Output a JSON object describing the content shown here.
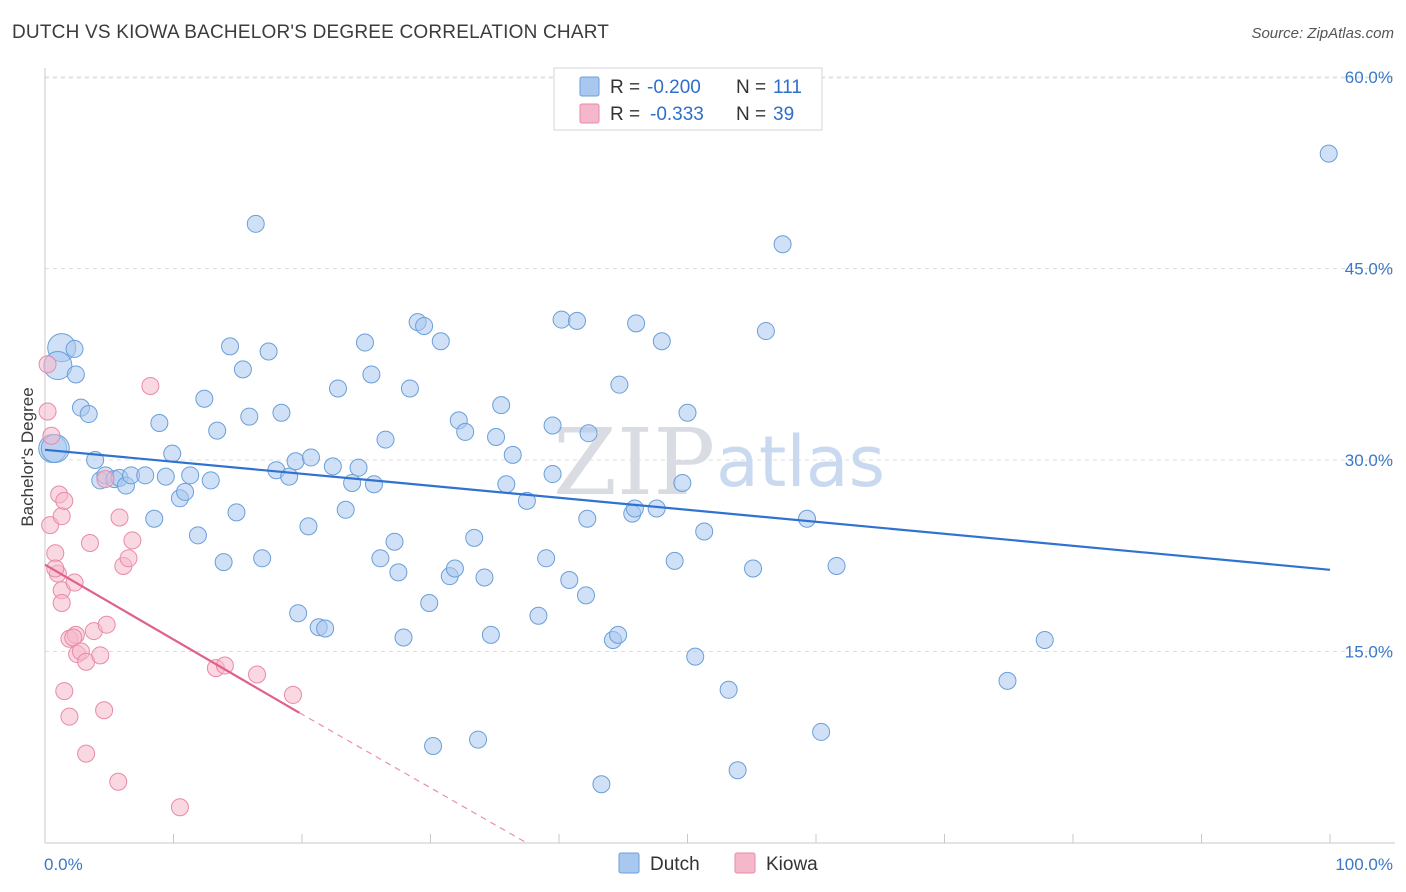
{
  "title": "DUTCH VS KIOWA BACHELOR'S DEGREE CORRELATION CHART",
  "source": "Source: ZipAtlas.com",
  "watermark": {
    "zip": "ZIP",
    "atlas": "atlas"
  },
  "chart_data": {
    "type": "scatter",
    "ylabel": "Bachelor's Degree",
    "xlim": [
      0,
      100
    ],
    "ylim": [
      0,
      62
    ],
    "x_tick_labels": [
      {
        "value": 0,
        "label": "0.0%"
      },
      {
        "value": 100,
        "label": "100.0%"
      }
    ],
    "y_tick_labels": [
      {
        "value": 15,
        "label": "15.0%"
      },
      {
        "value": 30,
        "label": "30.0%"
      },
      {
        "value": 45,
        "label": "45.0%"
      },
      {
        "value": 60,
        "label": "60.0%"
      }
    ],
    "legend_stats": [
      {
        "r_label": "R =",
        "r_value": "-0.200",
        "n_label": "N =",
        "n_value": "111",
        "color": "#a9c8f0"
      },
      {
        "r_label": "R =",
        "r_value": "-0.333",
        "n_label": "N =",
        "n_value": "39",
        "color": "#f5b8cb"
      }
    ],
    "series": [
      {
        "name": "Dutch",
        "color": "#a9c8f0",
        "stroke": "#6a9fd8",
        "trend": {
          "x1": 0,
          "y1": 30.8,
          "x2": 100,
          "y2": 21.4,
          "color": "#2f72d0"
        },
        "points": [
          [
            1.3,
            38.8
          ],
          [
            1.0,
            37.4
          ],
          [
            0.6,
            30.9
          ],
          [
            2.3,
            38.7
          ],
          [
            2.4,
            36.7
          ],
          [
            2.8,
            34.1
          ],
          [
            3.4,
            33.6
          ],
          [
            3.9,
            30.0
          ],
          [
            4.3,
            28.4
          ],
          [
            4.7,
            28.8
          ],
          [
            5.4,
            28.5
          ],
          [
            5.8,
            28.6
          ],
          [
            6.3,
            28.0
          ],
          [
            6.7,
            28.8
          ],
          [
            7.8,
            28.8
          ],
          [
            8.5,
            25.4
          ],
          [
            8.9,
            32.9
          ],
          [
            9.4,
            28.7
          ],
          [
            9.9,
            30.5
          ],
          [
            10.5,
            27.0
          ],
          [
            10.9,
            27.5
          ],
          [
            11.3,
            28.8
          ],
          [
            11.9,
            24.1
          ],
          [
            12.4,
            34.8
          ],
          [
            12.9,
            28.4
          ],
          [
            13.4,
            32.3
          ],
          [
            13.9,
            22.0
          ],
          [
            14.4,
            38.9
          ],
          [
            14.9,
            25.9
          ],
          [
            15.4,
            37.1
          ],
          [
            15.9,
            33.4
          ],
          [
            16.4,
            48.5
          ],
          [
            16.9,
            22.3
          ],
          [
            17.4,
            38.5
          ],
          [
            18.0,
            29.2
          ],
          [
            18.4,
            33.7
          ],
          [
            19.0,
            28.7
          ],
          [
            19.5,
            29.9
          ],
          [
            19.7,
            18.0
          ],
          [
            20.5,
            24.8
          ],
          [
            20.7,
            30.2
          ],
          [
            21.3,
            16.9
          ],
          [
            21.8,
            16.8
          ],
          [
            22.4,
            29.5
          ],
          [
            22.8,
            35.6
          ],
          [
            23.4,
            26.1
          ],
          [
            23.9,
            28.2
          ],
          [
            24.4,
            29.4
          ],
          [
            24.9,
            39.2
          ],
          [
            25.4,
            36.7
          ],
          [
            25.6,
            28.1
          ],
          [
            26.1,
            22.3
          ],
          [
            26.5,
            31.6
          ],
          [
            27.2,
            23.6
          ],
          [
            27.5,
            21.2
          ],
          [
            27.9,
            16.1
          ],
          [
            28.4,
            35.6
          ],
          [
            29.0,
            40.8
          ],
          [
            29.5,
            40.5
          ],
          [
            29.9,
            18.8
          ],
          [
            30.2,
            7.6
          ],
          [
            30.8,
            39.3
          ],
          [
            31.5,
            20.9
          ],
          [
            31.9,
            21.5
          ],
          [
            32.2,
            33.1
          ],
          [
            32.7,
            32.2
          ],
          [
            33.4,
            23.9
          ],
          [
            33.7,
            8.1
          ],
          [
            34.2,
            20.8
          ],
          [
            34.7,
            16.3
          ],
          [
            35.1,
            31.8
          ],
          [
            35.5,
            34.3
          ],
          [
            35.9,
            28.1
          ],
          [
            36.4,
            30.4
          ],
          [
            37.5,
            26.8
          ],
          [
            38.4,
            17.8
          ],
          [
            39.0,
            22.3
          ],
          [
            39.5,
            28.9
          ],
          [
            39.5,
            32.7
          ],
          [
            40.2,
            41.0
          ],
          [
            40.8,
            20.6
          ],
          [
            41.4,
            40.9
          ],
          [
            42.1,
            19.4
          ],
          [
            42.3,
            32.1
          ],
          [
            42.2,
            25.4
          ],
          [
            43.3,
            4.6
          ],
          [
            44.2,
            15.9
          ],
          [
            44.6,
            16.3
          ],
          [
            44.7,
            35.9
          ],
          [
            45.7,
            25.8
          ],
          [
            45.9,
            26.2
          ],
          [
            46.0,
            40.7
          ],
          [
            47.6,
            26.2
          ],
          [
            48.0,
            39.3
          ],
          [
            49.0,
            22.1
          ],
          [
            49.6,
            28.2
          ],
          [
            50.0,
            33.7
          ],
          [
            50.6,
            14.6
          ],
          [
            51.3,
            24.4
          ],
          [
            53.2,
            12.0
          ],
          [
            53.9,
            5.7
          ],
          [
            55.1,
            21.5
          ],
          [
            56.1,
            40.1
          ],
          [
            57.4,
            46.9
          ],
          [
            59.3,
            25.4
          ],
          [
            60.4,
            8.7
          ],
          [
            61.6,
            21.7
          ],
          [
            74.9,
            12.7
          ],
          [
            77.8,
            15.9
          ],
          [
            99.9,
            54.0
          ],
          [
            0.8,
            30.9
          ]
        ]
      },
      {
        "name": "Kiowa",
        "color": "#f5b8cb",
        "stroke": "#e88aa8",
        "trend": {
          "x1": 0,
          "y1": 21.8,
          "x2": 19.8,
          "y2": 10.2,
          "dash_x2": 37.5,
          "dash_y2": 0,
          "color": "#e0608c"
        },
        "points": [
          [
            0.2,
            37.5
          ],
          [
            0.2,
            33.8
          ],
          [
            0.5,
            31.9
          ],
          [
            0.4,
            24.9
          ],
          [
            0.8,
            22.7
          ],
          [
            1.0,
            21.1
          ],
          [
            0.8,
            21.5
          ],
          [
            1.1,
            27.3
          ],
          [
            1.3,
            25.6
          ],
          [
            1.5,
            26.8
          ],
          [
            1.3,
            19.8
          ],
          [
            1.3,
            18.8
          ],
          [
            1.9,
            16.0
          ],
          [
            2.3,
            20.4
          ],
          [
            2.4,
            16.3
          ],
          [
            2.5,
            14.8
          ],
          [
            2.2,
            16.1
          ],
          [
            2.8,
            15.0
          ],
          [
            3.2,
            14.2
          ],
          [
            3.8,
            16.6
          ],
          [
            3.5,
            23.5
          ],
          [
            4.3,
            14.7
          ],
          [
            4.8,
            17.1
          ],
          [
            4.7,
            28.5
          ],
          [
            5.8,
            25.5
          ],
          [
            6.1,
            21.7
          ],
          [
            6.5,
            22.3
          ],
          [
            6.8,
            23.7
          ],
          [
            8.2,
            35.8
          ],
          [
            1.5,
            11.9
          ],
          [
            1.9,
            9.9
          ],
          [
            4.6,
            10.4
          ],
          [
            3.2,
            7.0
          ],
          [
            5.7,
            4.8
          ],
          [
            10.5,
            2.8
          ],
          [
            13.3,
            13.7
          ],
          [
            14.0,
            13.9
          ],
          [
            16.5,
            13.2
          ],
          [
            19.3,
            11.6
          ]
        ]
      }
    ]
  }
}
